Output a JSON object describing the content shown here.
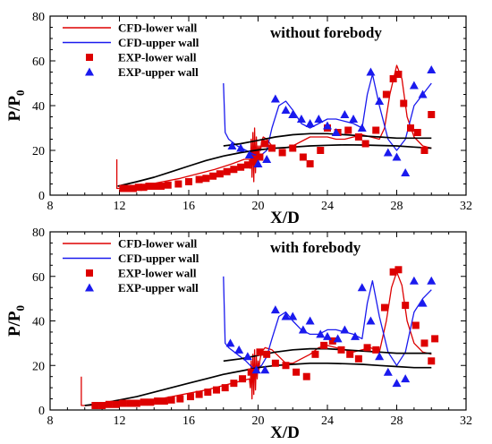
{
  "chart_data": [
    {
      "type": "line",
      "panel_label": "without forebody",
      "xlabel": "X/D",
      "ylabel": "P/P",
      "ylabel_subscript": "0",
      "xlim": [
        8,
        32
      ],
      "ylim": [
        0,
        80
      ],
      "xticks": [
        8,
        12,
        16,
        20,
        24,
        28,
        32
      ],
      "yticks": [
        0,
        20,
        40,
        60,
        80
      ],
      "grid": false,
      "legend_position": "top-left",
      "series": [
        {
          "name": "CFD-lower wall",
          "kind": "line",
          "color": "#dd0000",
          "x": [
            11.85,
            11.85,
            11.9,
            12.0,
            12.5,
            13.5,
            14.5,
            15.5,
            16.5,
            17.5,
            18.5,
            19.2,
            19.5,
            19.55,
            19.6,
            19.65,
            19.7,
            19.75,
            19.8,
            19.85,
            19.9,
            19.95,
            20.0,
            20.05,
            20.1,
            20.15,
            20.2,
            20.3,
            20.5,
            20.8,
            21.0,
            21.5,
            22.0,
            22.5,
            23.0,
            23.5,
            24.0,
            24.5,
            25.0,
            25.5,
            26.0,
            26.5,
            27.0,
            27.3,
            27.6,
            28.0,
            28.3,
            28.6,
            29.0,
            29.5,
            30.0
          ],
          "y": [
            16,
            3,
            3,
            3,
            3.5,
            4.5,
            6,
            7.5,
            9.5,
            11.5,
            14,
            16,
            16,
            12,
            25,
            8,
            28,
            6,
            30,
            10,
            26,
            14,
            22,
            18,
            22,
            20,
            24,
            26,
            25,
            22,
            21,
            21,
            22,
            24,
            26,
            26,
            26,
            25,
            25,
            26,
            27,
            26,
            25,
            30,
            45,
            58,
            52,
            35,
            26,
            22,
            21
          ]
        },
        {
          "name": "CFD-upper wall",
          "kind": "line",
          "color": "#1a1aee",
          "x": [
            18.0,
            18.1,
            18.3,
            18.8,
            19.3,
            19.8,
            20.2,
            20.5,
            20.8,
            21.2,
            21.6,
            22.0,
            22.5,
            23.0,
            23.5,
            24.0,
            24.5,
            25.0,
            25.5,
            26.0,
            26.3,
            26.6,
            27.0,
            27.5,
            28.0,
            28.5,
            29.0,
            29.5,
            30.0
          ],
          "y": [
            50,
            28,
            25,
            22,
            20,
            18,
            18,
            20,
            30,
            40,
            42,
            38,
            32,
            30,
            32,
            34,
            34,
            33,
            32,
            30,
            45,
            54,
            40,
            25,
            20,
            25,
            40,
            45,
            50
          ]
        },
        {
          "name": "",
          "kind": "line",
          "color": "#000000",
          "x": [
            11.9,
            13,
            14,
            15,
            16,
            17,
            18,
            19,
            20,
            21,
            22,
            23,
            24,
            25,
            26,
            27,
            28,
            29,
            30
          ],
          "y": [
            4,
            6,
            8,
            10.5,
            13,
            15.5,
            17.5,
            19,
            20.2,
            21,
            21.5,
            22,
            22.3,
            22.5,
            22.4,
            22.2,
            22,
            21.5,
            21
          ]
        },
        {
          "name": "",
          "kind": "line",
          "color": "#000000",
          "x": [
            18,
            19,
            20,
            21,
            22,
            23,
            24,
            25,
            26,
            27,
            28,
            29,
            30
          ],
          "y": [
            22,
            23,
            24.5,
            26,
            27,
            27.5,
            27.5,
            27,
            26.5,
            26,
            25.5,
            25.5,
            25.5
          ]
        },
        {
          "name": "EXP-lower wall",
          "kind": "marker",
          "marker": "square",
          "color": "#dd0000",
          "x": [
            12.2,
            12.5,
            12.8,
            13.1,
            13.4,
            13.7,
            14.0,
            14.4,
            14.8,
            15.4,
            16.0,
            16.6,
            17.0,
            17.4,
            17.8,
            18.2,
            18.6,
            19.0,
            19.4,
            19.8,
            20.1,
            20.4,
            20.8,
            21.4,
            22.0,
            22.6,
            23.0,
            23.6,
            24.0,
            24.6,
            25.2,
            25.8,
            26.2,
            26.8,
            27.4,
            27.8,
            28.1,
            28.4,
            28.8,
            29.2,
            29.6,
            30.0
          ],
          "y": [
            3,
            3,
            3,
            3.5,
            3.5,
            4,
            4,
            4,
            4.5,
            5,
            6,
            7,
            7.5,
            8.5,
            9.5,
            10.5,
            11.5,
            12.5,
            13.5,
            15,
            17,
            23,
            21,
            19,
            21,
            17,
            14,
            20,
            30,
            28,
            29,
            26,
            23,
            29,
            45,
            52,
            54,
            41,
            30,
            28,
            20,
            36
          ]
        },
        {
          "name": "EXP-upper wall",
          "kind": "marker",
          "marker": "triangle",
          "color": "#1a1aee",
          "x": [
            18.5,
            19.0,
            19.5,
            20.0,
            20.5,
            21.0,
            21.6,
            22.0,
            22.5,
            23.0,
            23.5,
            24.0,
            24.5,
            25.0,
            25.5,
            26.0,
            26.5,
            27.0,
            27.5,
            28.0,
            28.5,
            29.0,
            29.5,
            30.0
          ],
          "y": [
            22,
            21,
            18,
            14,
            16,
            43,
            38,
            36,
            34,
            32,
            34,
            31,
            28,
            36,
            34,
            30,
            55,
            42,
            19,
            17,
            10,
            49,
            45,
            56
          ]
        }
      ]
    },
    {
      "type": "line",
      "panel_label": "with forebody",
      "xlabel": "X/D",
      "ylabel": "P/P",
      "ylabel_subscript": "0",
      "xlim": [
        8,
        32
      ],
      "ylim": [
        0,
        80
      ],
      "xticks": [
        8,
        12,
        16,
        20,
        24,
        28,
        32
      ],
      "yticks": [
        0,
        20,
        40,
        60,
        80
      ],
      "grid": false,
      "legend_position": "top-left",
      "series": [
        {
          "name": "CFD-lower wall",
          "kind": "line",
          "color": "#dd0000",
          "x": [
            9.8,
            9.8,
            9.9,
            10.2,
            11,
            12,
            13,
            14,
            15,
            16,
            17,
            18,
            19.0,
            19.5,
            19.55,
            19.6,
            19.65,
            19.7,
            19.75,
            19.8,
            19.85,
            19.9,
            19.95,
            20.0,
            20.05,
            20.1,
            20.2,
            20.4,
            20.8,
            21.2,
            21.6,
            22.0,
            22.5,
            23.0,
            23.5,
            24.0,
            24.5,
            25.0,
            25.5,
            26.0,
            26.5,
            27.0,
            27.4,
            27.7,
            28.0,
            28.3,
            28.6,
            29.0,
            29.5,
            30.0
          ],
          "y": [
            15,
            2,
            2,
            2,
            2.5,
            3,
            3.5,
            4.5,
            6,
            7.5,
            9,
            11,
            13,
            14,
            10,
            22,
            5,
            25,
            7,
            27,
            9,
            24,
            14,
            22,
            18,
            22,
            26,
            28,
            27,
            24,
            21,
            21,
            23,
            25,
            28,
            29,
            28,
            27,
            26,
            27,
            28,
            26,
            40,
            55,
            62,
            56,
            40,
            30,
            26,
            25
          ]
        },
        {
          "name": "CFD-upper wall",
          "kind": "line",
          "color": "#1a1aee",
          "x": [
            18.0,
            18.1,
            18.3,
            18.8,
            19.3,
            19.8,
            20.2,
            20.5,
            20.8,
            21.2,
            21.6,
            22.0,
            22.5,
            23.0,
            23.5,
            24.0,
            24.5,
            25.0,
            25.5,
            26.0,
            26.3,
            26.6,
            27.0,
            27.5,
            28.0,
            28.5,
            29.0,
            29.5,
            30.0
          ],
          "y": [
            60,
            30,
            28,
            25,
            22,
            18,
            20,
            24,
            32,
            42,
            44,
            40,
            36,
            34,
            34,
            36,
            36,
            35,
            34,
            32,
            48,
            58,
            42,
            26,
            20,
            26,
            44,
            50,
            54
          ]
        },
        {
          "name": "",
          "kind": "line",
          "color": "#000000",
          "x": [
            10.0,
            11,
            12,
            13,
            14,
            15,
            16,
            17,
            18,
            19,
            20,
            21,
            22,
            23,
            24,
            25,
            26,
            27,
            28,
            29,
            30
          ],
          "y": [
            2,
            3,
            4.5,
            6,
            8,
            10,
            12,
            14,
            16,
            17.5,
            19,
            20,
            20.5,
            21,
            21,
            20.8,
            20.5,
            20,
            19.5,
            19,
            19
          ]
        },
        {
          "name": "",
          "kind": "line",
          "color": "#000000",
          "x": [
            18,
            19,
            20,
            21,
            22,
            23,
            24,
            25,
            26,
            27,
            28,
            29,
            30
          ],
          "y": [
            22,
            23,
            24.5,
            26,
            27,
            27.5,
            27.5,
            27,
            26.5,
            26,
            25.5,
            25.5,
            25.5
          ]
        },
        {
          "name": "EXP-lower wall",
          "kind": "marker",
          "marker": "square",
          "color": "#dd0000",
          "x": [
            10.6,
            11.0,
            11.4,
            11.8,
            12.2,
            12.6,
            13.0,
            13.4,
            13.8,
            14.2,
            14.6,
            15.0,
            15.5,
            16.1,
            16.6,
            17.1,
            17.6,
            18.1,
            18.6,
            19.1,
            19.6,
            20.1,
            20.5,
            21.0,
            21.6,
            22.2,
            22.8,
            23.3,
            23.8,
            24.3,
            24.8,
            25.3,
            25.8,
            26.3,
            26.8,
            27.3,
            27.8,
            28.1,
            28.5,
            29.1,
            29.6,
            30.0,
            30.2
          ],
          "y": [
            2,
            2,
            2.5,
            2.5,
            3,
            3,
            3,
            3.5,
            3.5,
            4,
            4,
            4.5,
            5,
            6,
            7,
            8,
            9,
            10,
            12,
            14,
            17,
            26,
            25,
            21,
            20,
            17,
            15,
            25,
            29,
            31,
            27,
            25,
            23,
            28,
            27,
            46,
            62,
            63,
            47,
            38,
            30,
            22,
            32
          ]
        },
        {
          "name": "EXP-upper wall",
          "kind": "marker",
          "marker": "triangle",
          "color": "#1a1aee",
          "x": [
            18.4,
            18.9,
            19.4,
            19.9,
            20.4,
            21.0,
            21.6,
            22.0,
            22.6,
            23.0,
            23.6,
            24.0,
            24.6,
            25.0,
            25.6,
            26.0,
            26.5,
            27.0,
            27.5,
            28.0,
            28.5,
            29.0,
            29.5,
            30.0
          ],
          "y": [
            30,
            27,
            24,
            18,
            18,
            45,
            42,
            42,
            36,
            40,
            34,
            33,
            32,
            36,
            33,
            55,
            40,
            24,
            17,
            12,
            14,
            58,
            48,
            58
          ]
        }
      ]
    }
  ]
}
